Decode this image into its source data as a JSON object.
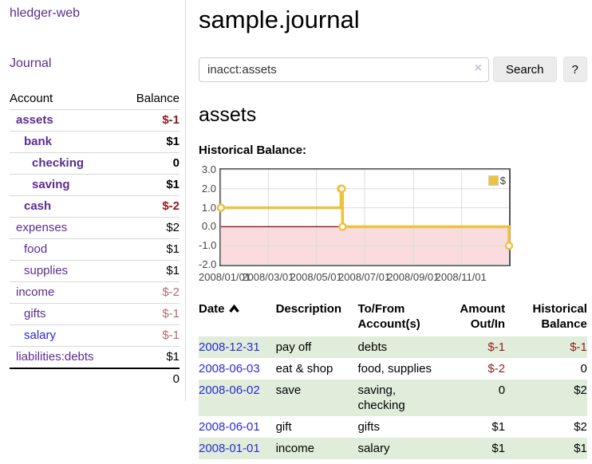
{
  "app": {
    "brand": "hledger-web"
  },
  "sidebar": {
    "journal_link": "Journal",
    "accounts": {
      "header_account": "Account",
      "header_balance": "Balance",
      "rows": [
        {
          "name": "assets",
          "depth": 0,
          "balance": "$-1",
          "bold": true,
          "link_color": "purple"
        },
        {
          "name": "bank",
          "depth": 1,
          "balance": "$1",
          "bold": true,
          "link_color": "purple"
        },
        {
          "name": "checking",
          "depth": 2,
          "balance": "0",
          "bold": true,
          "link_color": "purple"
        },
        {
          "name": "saving",
          "depth": 2,
          "balance": "$1",
          "bold": true,
          "link_color": "purple"
        },
        {
          "name": "cash",
          "depth": 1,
          "balance": "$-2",
          "bold": true,
          "link_color": "purple"
        },
        {
          "name": "expenses",
          "depth": 0,
          "balance": "$2",
          "bold": false,
          "link_color": "purple"
        },
        {
          "name": "food",
          "depth": 1,
          "balance": "$1",
          "bold": false,
          "link_color": "purple"
        },
        {
          "name": "supplies",
          "depth": 1,
          "balance": "$1",
          "bold": false,
          "link_color": "purple"
        },
        {
          "name": "income",
          "depth": 0,
          "balance": "$-2",
          "bold": false,
          "link_color": "purple"
        },
        {
          "name": "gifts",
          "depth": 1,
          "balance": "$-1",
          "bold": false,
          "link_color": "purple"
        },
        {
          "name": "salary",
          "depth": 1,
          "balance": "$-1",
          "bold": false,
          "link_color": "blue"
        },
        {
          "name": "liabilities:debts",
          "depth": 0,
          "balance": "$1",
          "bold": false,
          "link_color": "purple"
        }
      ],
      "total": "0"
    }
  },
  "main": {
    "title": "sample.journal",
    "search": {
      "value": "inacct:assets",
      "clear_icon": "×",
      "search_button": "Search",
      "help_button": "?"
    },
    "heading": "assets",
    "chart_title": "Historical Balance:"
  },
  "chart_data": {
    "type": "line",
    "step": true,
    "title": "Historical Balance",
    "series": [
      {
        "name": "$",
        "color": "#edc240",
        "points": [
          [
            "2008-01-01",
            1
          ],
          [
            "2008-06-01",
            2
          ],
          [
            "2008-06-02",
            2
          ],
          [
            "2008-06-03",
            0
          ],
          [
            "2008-12-31",
            -1
          ]
        ]
      }
    ],
    "x_range": [
      "2008-01-01",
      "2008-12-31"
    ],
    "ylim": [
      -2,
      3
    ],
    "yticks": [
      3,
      2,
      1,
      0,
      -1,
      -2
    ],
    "xticks": [
      {
        "label": "2008/01/01",
        "date": "2008-01-01"
      },
      {
        "label": "2008/03/01",
        "date": "2008-03-01"
      },
      {
        "label": "2008/05/01",
        "date": "2008-05-01"
      },
      {
        "label": "2008/07/01",
        "date": "2008-07-01"
      },
      {
        "label": "2008/09/01",
        "date": "2008-09-01"
      },
      {
        "label": "2008/11/01",
        "date": "2008-11-01"
      }
    ],
    "grid": true,
    "legend": {
      "label": "$",
      "position": "top-right"
    },
    "colors": {
      "negative_region": "#fadcde",
      "zero_line": "#8b0000",
      "grid": "#dcdcdc",
      "border": "#545454",
      "marker_fill": "#ffffff"
    }
  },
  "register": {
    "headers": {
      "date": "Date",
      "description": "Description",
      "accounts": "To/From\nAccount(s)",
      "amount": "Amount\nOut/In",
      "balance": "Historical\nBalance"
    },
    "rows": [
      {
        "date": "2008-12-31",
        "description": "pay off",
        "accounts": "debts",
        "amount": "$-1",
        "balance": "$-1"
      },
      {
        "date": "2008-06-03",
        "description": "eat & shop",
        "accounts": "food, supplies",
        "amount": "$-2",
        "balance": "0"
      },
      {
        "date": "2008-06-02",
        "description": "save",
        "accounts": "saving,\nchecking",
        "amount": "0",
        "balance": "$2"
      },
      {
        "date": "2008-06-01",
        "description": "gift",
        "accounts": "gifts",
        "amount": "$1",
        "balance": "$2"
      },
      {
        "date": "2008-01-01",
        "description": "income",
        "accounts": "salary",
        "amount": "$1",
        "balance": "$1"
      }
    ]
  }
}
